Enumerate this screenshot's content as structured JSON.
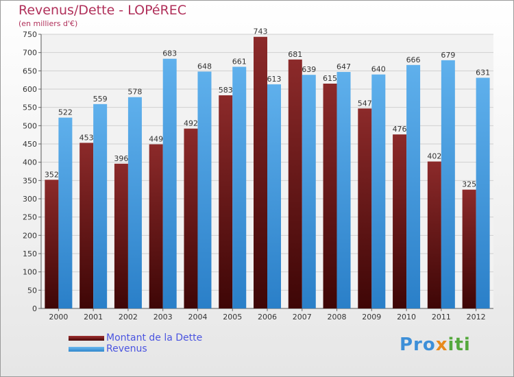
{
  "header": {
    "title": "Revenus/Dette - LOPéREC",
    "subtitle": "(en milliers d'€)"
  },
  "chart_data": {
    "type": "bar",
    "title": "Revenus/Dette - LOPéREC",
    "ylabel": "(en milliers d'€)",
    "xlabel": "",
    "ylim": [
      0,
      750
    ],
    "yticks": [
      0,
      50,
      100,
      150,
      200,
      250,
      300,
      350,
      400,
      450,
      500,
      550,
      600,
      650,
      700,
      750
    ],
    "grid": true,
    "categories": [
      "2000",
      "2001",
      "2002",
      "2003",
      "2004",
      "2005",
      "2006",
      "2007",
      "2008",
      "2009",
      "2010",
      "2011",
      "2012"
    ],
    "series": [
      {
        "name": "Montant de la Dette",
        "color": "#7a1a1a",
        "values": [
          352,
          453,
          396,
          449,
          492,
          583,
          743,
          681,
          615,
          547,
          476,
          402,
          325
        ]
      },
      {
        "name": "Revenus",
        "color": "#4a9ee0",
        "values": [
          522,
          559,
          578,
          683,
          648,
          661,
          613,
          639,
          647,
          640,
          666,
          679,
          631
        ]
      }
    ],
    "legend_position": "bottom-left"
  },
  "legend": {
    "items": [
      {
        "label": "Montant de la Dette",
        "color": "#6e1414"
      },
      {
        "label": "Revenus",
        "color": "#4a9ee0"
      }
    ]
  },
  "logo": {
    "part1": "Pro",
    "part2": "x",
    "part3": "iti"
  }
}
